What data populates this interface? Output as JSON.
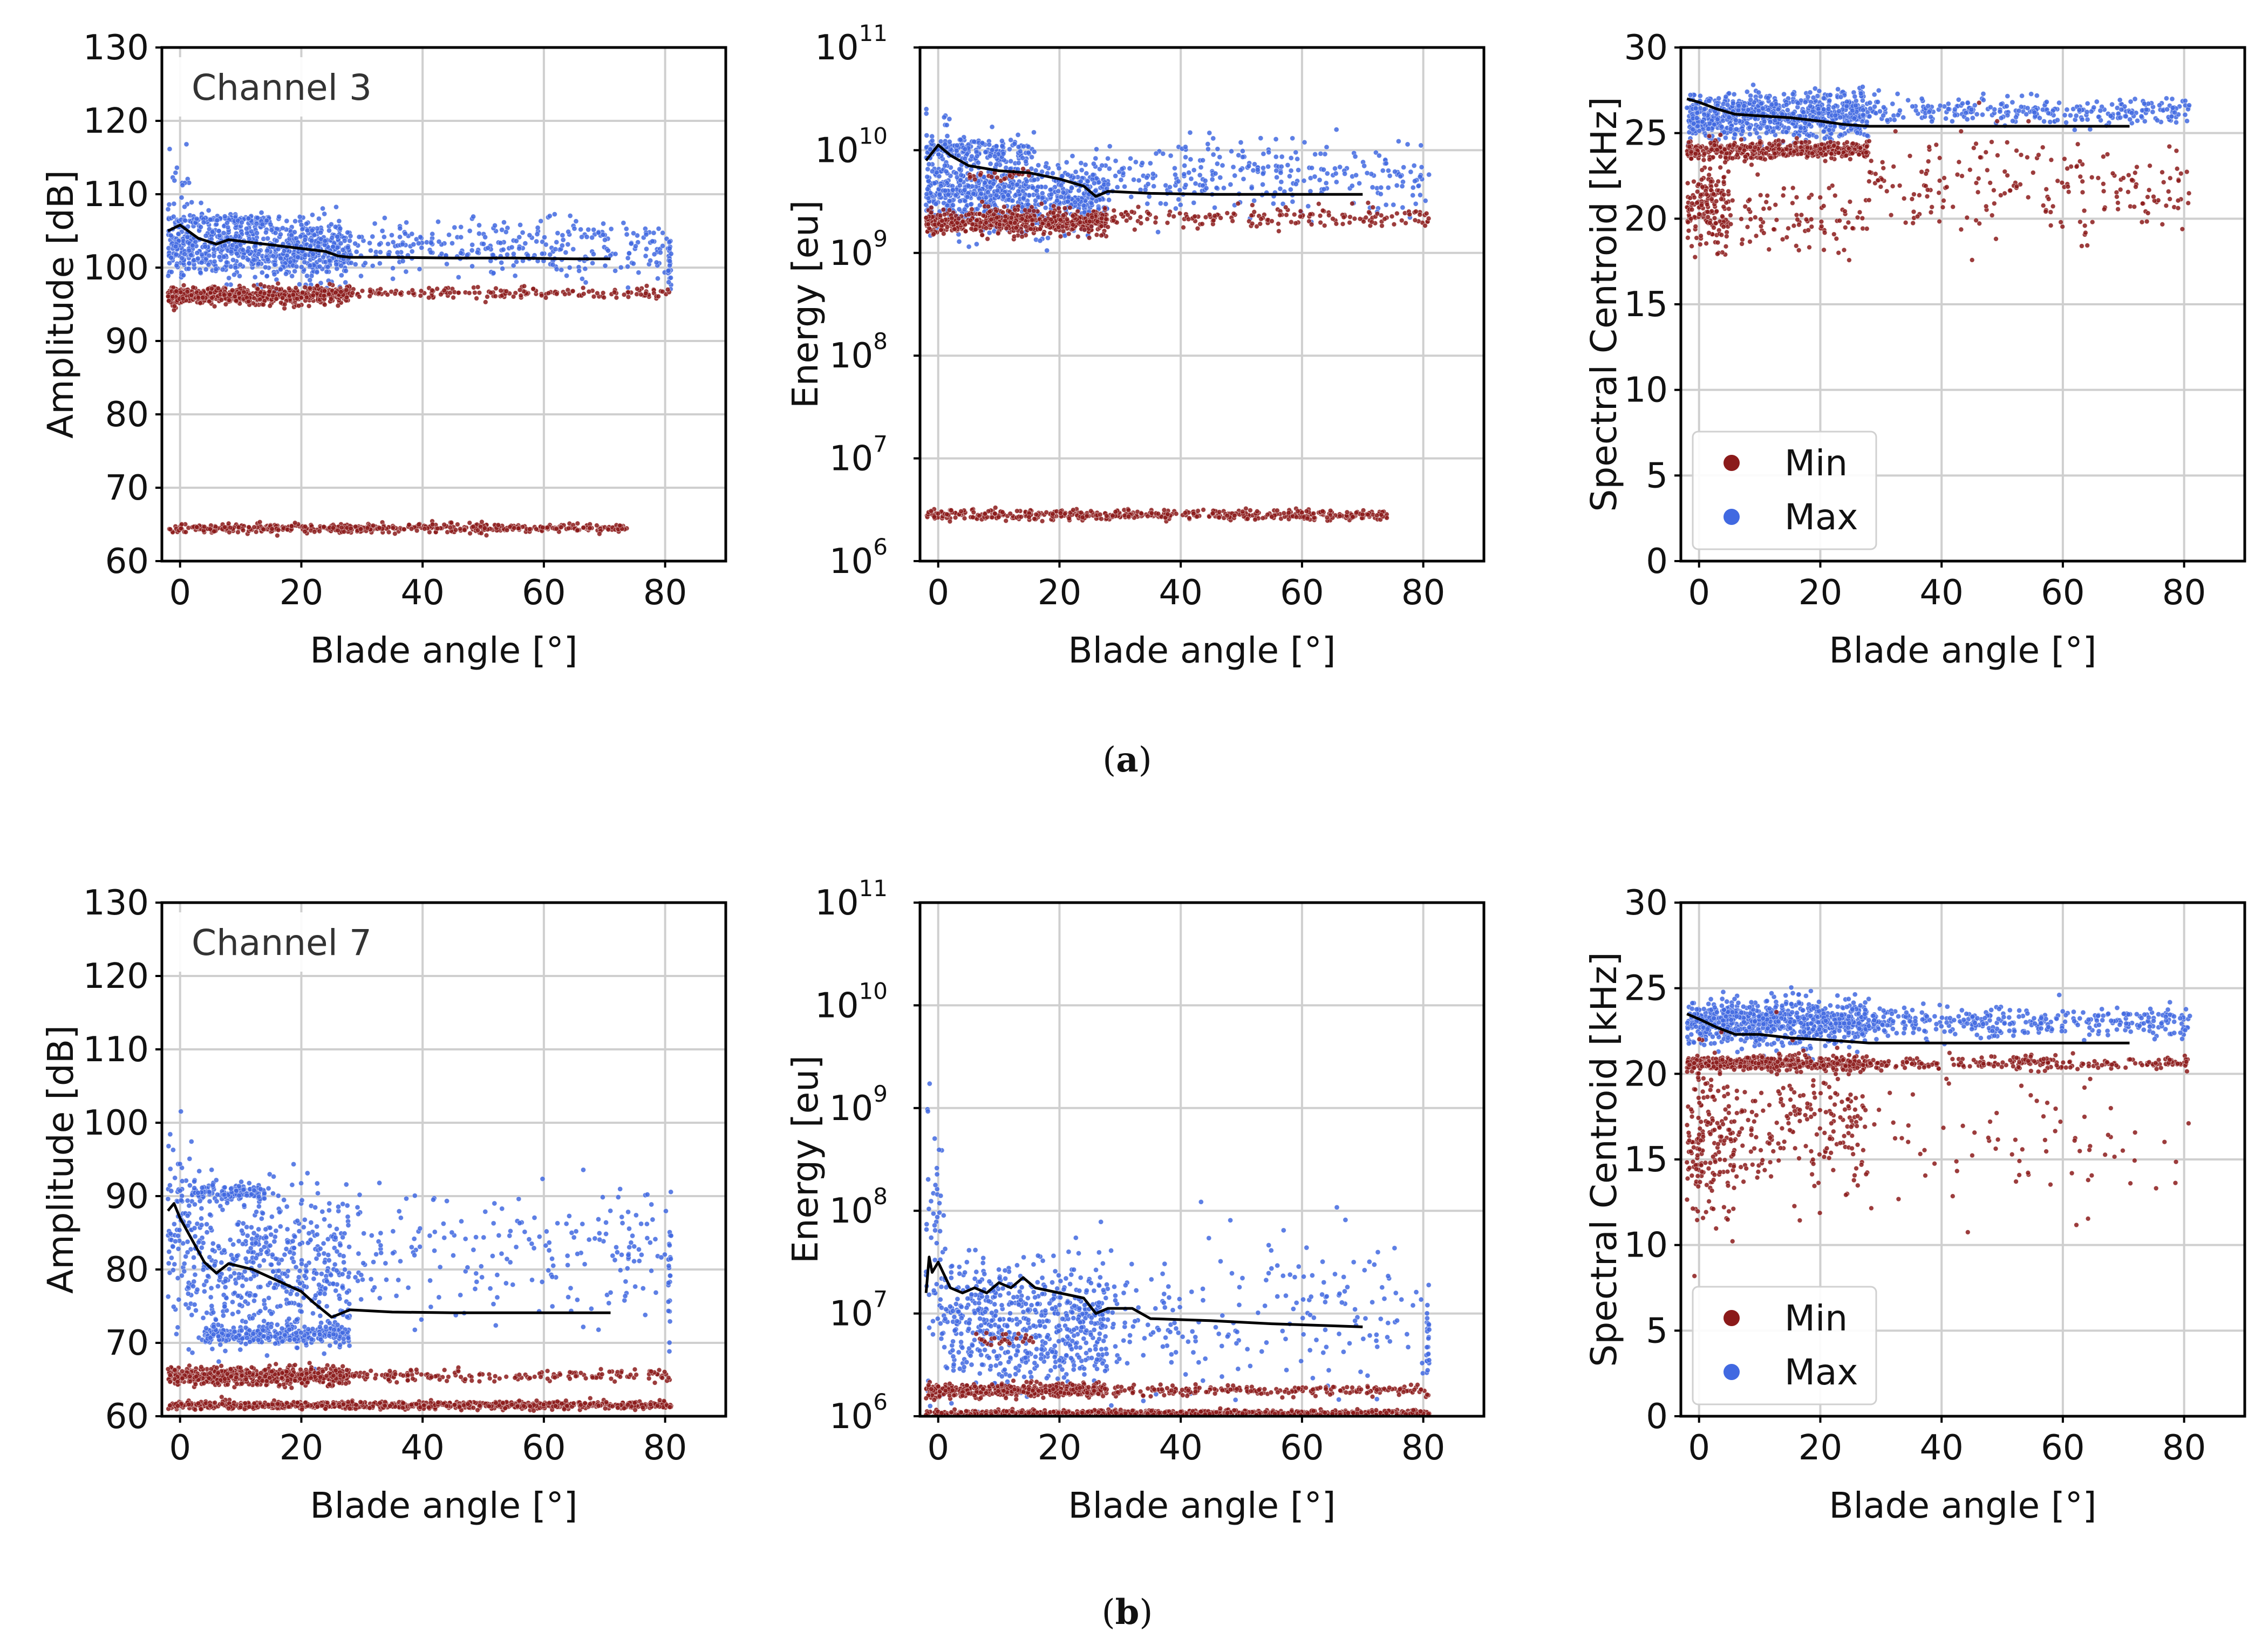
{
  "figure": {
    "captions": [
      "a",
      "b"
    ],
    "colors": {
      "min": "#8b1a1a",
      "max": "#4169e1",
      "trend": "#000000",
      "grid": "#cfcfcf"
    }
  },
  "legend": {
    "items": [
      {
        "label": "Min",
        "color": "#8b1a1a"
      },
      {
        "label": "Max",
        "color": "#4169e1"
      }
    ],
    "placement": "lower-left"
  },
  "chart_data": [
    {
      "id": "a-amplitude",
      "row": "a",
      "type": "scatter",
      "annotation": "Channel 3",
      "xlabel": "Blade angle [°]",
      "ylabel": "Amplitude [dB]",
      "xlim": [
        -3,
        90
      ],
      "ylim": [
        60,
        130
      ],
      "yscale": "linear",
      "xticks": [
        0,
        20,
        40,
        60,
        80
      ],
      "yticks": [
        60,
        70,
        80,
        90,
        100,
        110,
        120,
        130
      ],
      "grid": true,
      "series": [
        {
          "name": "Max",
          "color": "#4169e1",
          "bands": [
            {
              "x": [
                -2,
                28
              ],
              "center": 102.5,
              "spread": 4,
              "density": 1.0
            },
            {
              "x": [
                -2,
                15
              ],
              "center": 106.5,
              "spread": 0.6,
              "density": 0.25
            },
            {
              "x": [
                28,
                81
              ],
              "center": 102.5,
              "spread": 4,
              "density": 0.22
            },
            {
              "x": [
                -2,
                2
              ],
              "center": 112,
              "spread": 6,
              "density": 0.15
            },
            {
              "x": [
                80.5,
                81
              ],
              "center": 101,
              "spread": 3,
              "density": 0.3
            }
          ]
        },
        {
          "name": "Min",
          "color": "#8b1a1a",
          "bands": [
            {
              "x": [
                -2,
                28
              ],
              "center": 96.2,
              "spread": 1.2,
              "density": 0.8
            },
            {
              "x": [
                28,
                81
              ],
              "center": 96.5,
              "spread": 0.8,
              "density": 0.12
            },
            {
              "x": [
                -2,
                74
              ],
              "center": 64.5,
              "spread": 0.6,
              "density": 0.25
            }
          ]
        },
        {
          "name": "Trend",
          "color": "#000000",
          "x": [
            -2,
            0,
            3,
            6,
            8,
            12,
            16,
            20,
            24,
            26,
            28,
            35,
            45,
            55,
            65,
            71
          ],
          "y": [
            105,
            105.8,
            104,
            103.2,
            103.8,
            103.4,
            103,
            102.6,
            102.2,
            101.6,
            101.4,
            101.4,
            101.3,
            101.3,
            101.2,
            101.2
          ]
        }
      ]
    },
    {
      "id": "a-energy",
      "row": "a",
      "type": "scatter",
      "xlabel": "Blade angle [°]",
      "ylabel": "Energy [eu]",
      "xlim": [
        -3,
        90
      ],
      "ylim": [
        1000000,
        100000000000
      ],
      "yscale": "log",
      "xticks": [
        0,
        20,
        40,
        60,
        80
      ],
      "yticks": [
        "10^6",
        "10^7",
        "10^8",
        "10^9",
        "10^10",
        "10^11"
      ],
      "grid": true,
      "series": [
        {
          "name": "Max",
          "color": "#4169e1",
          "bands": [
            {
              "x": [
                -2,
                28
              ],
              "center": 9.55,
              "spread": 0.35,
              "density": 1.0
            },
            {
              "x": [
                -2,
                15
              ],
              "center": 10.0,
              "spread": 0.12,
              "density": 0.4
            },
            {
              "x": [
                28,
                81
              ],
              "center": 9.75,
              "spread": 0.35,
              "density": 0.2
            },
            {
              "x": [
                -2,
                2
              ],
              "center": 10.2,
              "spread": 0.4,
              "density": 0.12
            }
          ]
        },
        {
          "name": "Min",
          "color": "#8b1a1a",
          "bands": [
            {
              "x": [
                -2,
                28
              ],
              "center": 9.3,
              "spread": 0.12,
              "density": 0.8
            },
            {
              "x": [
                28,
                81
              ],
              "center": 9.35,
              "spread": 0.1,
              "density": 0.12
            },
            {
              "x": [
                5,
                15
              ],
              "center": 9.75,
              "spread": 0.05,
              "density": 0.1
            },
            {
              "x": [
                -2,
                74
              ],
              "center": 6.45,
              "spread": 0.05,
              "density": 0.25
            }
          ]
        },
        {
          "name": "Trend",
          "color": "#000000",
          "x": [
            -2,
            0,
            2,
            5,
            10,
            15,
            20,
            24,
            26,
            28,
            35,
            45,
            55,
            65,
            70
          ],
          "y": [
            9.9,
            10.05,
            9.95,
            9.85,
            9.8,
            9.78,
            9.72,
            9.65,
            9.55,
            9.6,
            9.58,
            9.57,
            9.57,
            9.57,
            9.57
          ]
        }
      ]
    },
    {
      "id": "a-centroid",
      "row": "a",
      "type": "scatter",
      "xlabel": "Blade angle [°]",
      "ylabel": "Spectral Centroid [kHz]",
      "xlim": [
        -3,
        90
      ],
      "ylim": [
        0,
        30
      ],
      "yscale": "linear",
      "xticks": [
        0,
        20,
        40,
        60,
        80
      ],
      "yticks": [
        0,
        5,
        10,
        15,
        20,
        25,
        30
      ],
      "grid": true,
      "series": [
        {
          "name": "Max",
          "color": "#4169e1",
          "bands": [
            {
              "x": [
                -2,
                28
              ],
              "center": 26.0,
              "spread": 1.3,
              "density": 1.0
            },
            {
              "x": [
                28,
                81
              ],
              "center": 26.3,
              "spread": 0.8,
              "density": 0.2
            }
          ]
        },
        {
          "name": "Min",
          "color": "#8b1a1a",
          "bands": [
            {
              "x": [
                -2,
                28
              ],
              "center": 24.0,
              "spread": 0.5,
              "density": 0.6
            },
            {
              "x": [
                -2,
                5
              ],
              "center": 20.5,
              "spread": 2.5,
              "density": 0.9
            },
            {
              "x": [
                5,
                28
              ],
              "center": 20.0,
              "spread": 2.0,
              "density": 0.15
            },
            {
              "x": [
                28,
                81
              ],
              "center": 22.0,
              "spread": 3.0,
              "density": 0.15
            }
          ]
        },
        {
          "name": "Trend",
          "color": "#000000",
          "x": [
            -2,
            0,
            3,
            6,
            10,
            15,
            20,
            24,
            28,
            35,
            45,
            55,
            65,
            71
          ],
          "y": [
            27,
            26.8,
            26.4,
            26.1,
            26,
            25.9,
            25.7,
            25.5,
            25.4,
            25.4,
            25.4,
            25.4,
            25.4,
            25.4
          ]
        }
      ]
    },
    {
      "id": "b-amplitude",
      "row": "b",
      "type": "scatter",
      "annotation": "Channel 7",
      "xlabel": "Blade angle [°]",
      "ylabel": "Amplitude [dB]",
      "xlim": [
        -3,
        90
      ],
      "ylim": [
        60,
        130
      ],
      "yscale": "linear",
      "xticks": [
        0,
        20,
        40,
        60,
        80
      ],
      "yticks": [
        60,
        70,
        80,
        90,
        100,
        110,
        120,
        130
      ],
      "grid": true,
      "series": [
        {
          "name": "Max",
          "color": "#4169e1",
          "bands": [
            {
              "x": [
                -2,
                2
              ],
              "center": 85,
              "spread": 14,
              "density": 0.9
            },
            {
              "x": [
                2,
                28
              ],
              "center": 80,
              "spread": 10,
              "density": 0.8
            },
            {
              "x": [
                2,
                14
              ],
              "center": 90.5,
              "spread": 1.2,
              "density": 0.4
            },
            {
              "x": [
                4,
                28
              ],
              "center": 71,
              "spread": 1.2,
              "density": 0.45
            },
            {
              "x": [
                28,
                81
              ],
              "center": 82,
              "spread": 9,
              "density": 0.15
            },
            {
              "x": [
                80.5,
                81
              ],
              "center": 80,
              "spread": 9,
              "density": 0.3
            }
          ]
        },
        {
          "name": "Min",
          "color": "#8b1a1a",
          "bands": [
            {
              "x": [
                -2,
                28
              ],
              "center": 65.5,
              "spread": 1.2,
              "density": 0.8
            },
            {
              "x": [
                28,
                81
              ],
              "center": 65.5,
              "spread": 0.8,
              "density": 0.12
            },
            {
              "x": [
                -2,
                81
              ],
              "center": 61.5,
              "spread": 0.5,
              "density": 0.4
            }
          ]
        },
        {
          "name": "Trend",
          "color": "#000000",
          "x": [
            -2,
            -1,
            0,
            2,
            4,
            6,
            8,
            12,
            16,
            20,
            22,
            25,
            28,
            35,
            45,
            55,
            65,
            71
          ],
          "y": [
            88,
            89,
            87,
            84,
            81,
            79.5,
            80.8,
            80,
            78.5,
            77,
            75.5,
            73.5,
            74.5,
            74.2,
            74.1,
            74.1,
            74.1,
            74.1
          ]
        }
      ]
    },
    {
      "id": "b-energy",
      "row": "b",
      "type": "scatter",
      "xlabel": "Blade angle [°]",
      "ylabel": "Energy [eu]",
      "xlim": [
        -3,
        90
      ],
      "ylim": [
        1000000,
        100000000000
      ],
      "yscale": "log",
      "xticks": [
        0,
        20,
        40,
        60,
        80
      ],
      "yticks": [
        "10^6",
        "10^7",
        "10^8",
        "10^9",
        "10^10",
        "10^11"
      ],
      "grid": true,
      "series": [
        {
          "name": "Max",
          "color": "#4169e1",
          "bands": [
            {
              "x": [
                -2,
                1
              ],
              "center": 7.6,
              "spread": 1.6,
              "density": 0.8
            },
            {
              "x": [
                1,
                28
              ],
              "center": 6.9,
              "spread": 0.6,
              "density": 0.9
            },
            {
              "x": [
                28,
                81
              ],
              "center": 7.0,
              "spread": 0.8,
              "density": 0.15
            },
            {
              "x": [
                80.5,
                81
              ],
              "center": 6.8,
              "spread": 0.5,
              "density": 0.3
            }
          ]
        },
        {
          "name": "Min",
          "color": "#8b1a1a",
          "bands": [
            {
              "x": [
                -2,
                28
              ],
              "center": 6.25,
              "spread": 0.06,
              "density": 0.6
            },
            {
              "x": [
                28,
                81
              ],
              "center": 6.25,
              "spread": 0.05,
              "density": 0.15
            },
            {
              "x": [
                -2,
                81
              ],
              "center": 6.03,
              "spread": 0.03,
              "density": 0.35
            },
            {
              "x": [
                6,
                16
              ],
              "center": 6.75,
              "spread": 0.07,
              "density": 0.1
            }
          ]
        },
        {
          "name": "Trend",
          "color": "#000000",
          "x": [
            -2,
            -1.5,
            -1,
            0,
            2,
            4,
            6,
            8,
            10,
            12,
            14,
            16,
            20,
            24,
            26,
            28,
            32,
            35,
            45,
            55,
            65,
            70
          ],
          "y": [
            7.2,
            7.55,
            7.4,
            7.5,
            7.25,
            7.2,
            7.25,
            7.2,
            7.3,
            7.25,
            7.35,
            7.25,
            7.2,
            7.15,
            7.0,
            7.05,
            7.05,
            6.95,
            6.93,
            6.9,
            6.88,
            6.87
          ]
        }
      ]
    },
    {
      "id": "b-centroid",
      "row": "b",
      "type": "scatter",
      "xlabel": "Blade angle [°]",
      "ylabel": "Spectral Centroid [kHz]",
      "xlim": [
        -3,
        90
      ],
      "ylim": [
        0,
        30
      ],
      "yscale": "linear",
      "xticks": [
        0,
        20,
        40,
        60,
        80
      ],
      "yticks": [
        0,
        5,
        10,
        15,
        20,
        25,
        30
      ],
      "grid": true,
      "series": [
        {
          "name": "Max",
          "color": "#4169e1",
          "bands": [
            {
              "x": [
                -2,
                28
              ],
              "center": 23.0,
              "spread": 1.3,
              "density": 1.0
            },
            {
              "x": [
                28,
                81
              ],
              "center": 23.0,
              "spread": 0.9,
              "density": 0.25
            }
          ]
        },
        {
          "name": "Min",
          "color": "#8b1a1a",
          "bands": [
            {
              "x": [
                -2,
                28
              ],
              "center": 20.6,
              "spread": 0.4,
              "density": 0.6
            },
            {
              "x": [
                -2,
                6
              ],
              "center": 16,
              "spread": 5,
              "density": 0.9
            },
            {
              "x": [
                6,
                28
              ],
              "center": 17,
              "spread": 4,
              "density": 0.35
            },
            {
              "x": [
                28,
                81
              ],
              "center": 20.6,
              "spread": 0.4,
              "density": 0.15
            },
            {
              "x": [
                28,
                81
              ],
              "center": 16,
              "spread": 5,
              "density": 0.06
            }
          ]
        },
        {
          "name": "Trend",
          "color": "#000000",
          "x": [
            -2,
            0,
            3,
            6,
            10,
            15,
            20,
            24,
            28,
            35,
            45,
            55,
            65,
            71
          ],
          "y": [
            23.5,
            23.2,
            22.7,
            22.3,
            22.3,
            22.1,
            22,
            21.9,
            21.8,
            21.8,
            21.8,
            21.8,
            21.8,
            21.8
          ]
        }
      ]
    }
  ]
}
